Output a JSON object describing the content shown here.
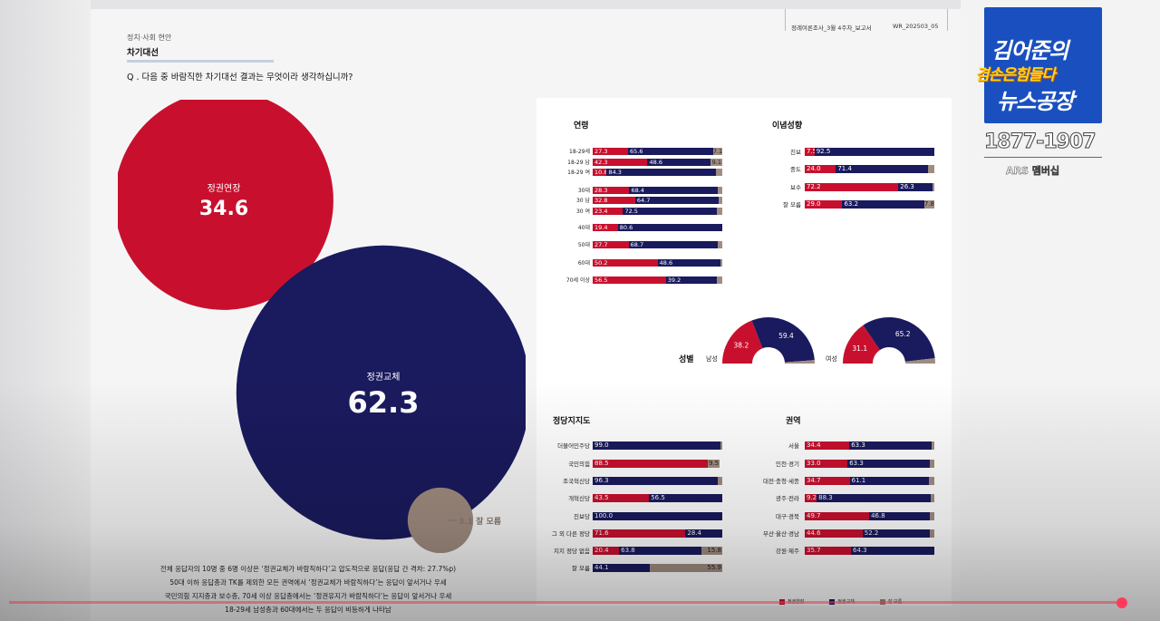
{
  "header": {
    "report_name": "정례여론조사_3월 4주차_보고서",
    "report_code": "WR_202503_05"
  },
  "section": {
    "category": "정치·사회 현안",
    "title": "차기대선",
    "question": "Q . 다음 중 바람직한 차기대선 결과는 무엇이라 생각하십니까?"
  },
  "summary_lines": [
    "전체 응답자의 10명 중 6명 이상은 ‘정권교체가 바람직하다’고 압도적으로  응답(응답 간 격차: 27.7%p)",
    "50대 이하 응답층과 TK를 제외한 모든 권역에서 ‘정권교체가 바람직하다’는 응답이 앞서거나 우세",
    "국민의힘 지지층과 보수층, 70세 이상 응답층에서는 ‘정권유지가 바람직하다’는 응답이 앞서거나 우세",
    "18-29세 남성층과 60대에서는 두 응답이 비등하게 나타남"
  ],
  "colors": {
    "red": "#c8102e",
    "blue": "#1a1a5e",
    "tan": "#a08c80"
  },
  "legend": [
    "정권연장",
    "정권교체",
    "잘 모름"
  ],
  "chart_data": [
    {
      "type": "bubble",
      "title": "차기대선",
      "categories": [
        "정권연장",
        "정권교체",
        "잘 모름"
      ],
      "values": [
        34.6,
        62.3,
        3.1
      ],
      "value_labels": [
        "34.6",
        "62.3",
        "3.1"
      ],
      "small_label": "3.1 잘 모름"
    },
    {
      "type": "bar",
      "stacked": true,
      "title": "연령",
      "categories": [
        "18-29세",
        "18-29 남",
        "18-29 여",
        "30대",
        "30 남",
        "30 여",
        "40대",
        "50대",
        "60대",
        "70세 이상"
      ],
      "series": [
        {
          "name": "정권연장",
          "values": [
            27.3,
            42.3,
            10.8,
            28.3,
            32.8,
            23.4,
            19.4,
            27.7,
            50.2,
            56.5
          ],
          "labels": [
            "27.3",
            "42.3",
            "10.8",
            "28.3",
            "32.8",
            "23.4",
            "19.4",
            "27.7",
            "50.2",
            "56.5"
          ]
        },
        {
          "name": "정권교체",
          "values": [
            65.6,
            48.6,
            84.3,
            68.4,
            64.7,
            72.5,
            80.6,
            68.7,
            48.6,
            39.2
          ],
          "labels": [
            "65.6",
            "48.6",
            "84.3",
            "68.4",
            "64.7",
            "72.5",
            "80.6",
            "68.7",
            "48.6",
            "39.2"
          ]
        },
        {
          "name": "잘 모름",
          "values": [
            7.1,
            9.1,
            4.9,
            3.3,
            2.5,
            4.1,
            0.0,
            3.6,
            1.2,
            4.3
          ],
          "labels": [
            "7.1",
            "9.1",
            "",
            "",
            "",
            "",
            "",
            "",
            "",
            ""
          ]
        }
      ]
    },
    {
      "type": "bar",
      "stacked": true,
      "title": "이념성향",
      "categories": [
        "진보",
        "중도",
        "보수",
        "잘 모름"
      ],
      "series": [
        {
          "name": "정권연장",
          "values": [
            7.5,
            24.0,
            72.2,
            29.0
          ],
          "labels": [
            "7.5",
            "24.0",
            "72.2",
            "29.0"
          ]
        },
        {
          "name": "정권교체",
          "values": [
            92.5,
            71.4,
            26.3,
            63.2
          ],
          "labels": [
            "92.5",
            "71.4",
            "26.3",
            "63.2"
          ]
        },
        {
          "name": "잘 모름",
          "values": [
            0.0,
            4.6,
            1.5,
            7.8
          ],
          "labels": [
            "",
            "",
            "",
            "7.8"
          ]
        }
      ]
    },
    {
      "type": "pie",
      "title": "성별",
      "groups": [
        {
          "name": "남성",
          "정권연장": 38.2,
          "정권교체": 59.4,
          "잘 모름": 2.4,
          "labels": [
            "38.2",
            "59.4"
          ]
        },
        {
          "name": "여성",
          "정권연장": 31.1,
          "정권교체": 65.2,
          "잘 모름": 3.7,
          "labels": [
            "31.1",
            "65.2"
          ]
        }
      ]
    },
    {
      "type": "bar",
      "stacked": true,
      "title": "정당지지도",
      "categories": [
        "더불어민주당",
        "국민의힘",
        "조국혁신당",
        "개혁신당",
        "진보당",
        "그 외 다른 정당",
        "지지 정당 없음",
        "잘 모름"
      ],
      "series": [
        {
          "name": "정권연장",
          "values": [
            0.0,
            88.5,
            0.0,
            43.5,
            0.0,
            71.6,
            20.4,
            0.0
          ],
          "labels": [
            "",
            "88.5",
            "",
            "43.5",
            "",
            "71.6",
            "20.4",
            ""
          ]
        },
        {
          "name": "정권교체",
          "values": [
            99.0,
            0.0,
            96.3,
            56.5,
            100.0,
            28.4,
            63.8,
            44.1
          ],
          "labels": [
            "99.0",
            "",
            "96.3",
            "56.5",
            "100.0",
            "28.4",
            "63.8",
            "44.1"
          ]
        },
        {
          "name": "잘 모름",
          "values": [
            1.0,
            9.5,
            3.7,
            0.0,
            0.0,
            0.0,
            15.8,
            55.9
          ],
          "labels": [
            "",
            "9.5",
            "",
            "",
            "",
            "",
            "15.8",
            "55.9"
          ]
        }
      ]
    },
    {
      "type": "bar",
      "stacked": true,
      "title": "권역",
      "categories": [
        "서울",
        "인천·경기",
        "대전·충청·세종",
        "광주·전라",
        "대구·경북",
        "부산·울산·경남",
        "강원·제주"
      ],
      "series": [
        {
          "name": "정권연장",
          "values": [
            34.4,
            33.0,
            34.7,
            9.2,
            49.7,
            44.6,
            35.7
          ],
          "labels": [
            "34.4",
            "33.0",
            "34.7",
            "9.2",
            "49.7",
            "44.6",
            "35.7"
          ]
        },
        {
          "name": "정권교체",
          "values": [
            63.3,
            63.3,
            61.1,
            88.3,
            46.8,
            52.2,
            64.3
          ],
          "labels": [
            "63.3",
            "63.3",
            "61.1",
            "88.3",
            "46.8",
            "52.2",
            "64.3"
          ]
        },
        {
          "name": "잘 모름",
          "values": [
            2.3,
            3.7,
            4.2,
            2.5,
            3.5,
            3.2,
            0.0
          ],
          "labels": [
            "",
            "",
            "",
            "",
            "",
            "",
            ""
          ]
        }
      ]
    }
  ],
  "logo": {
    "line1": "김어준의",
    "line2": "겸손은힘들다",
    "line3": "뉴스공장",
    "phone": "1877-1907",
    "sub": "ARS 멤버십"
  }
}
